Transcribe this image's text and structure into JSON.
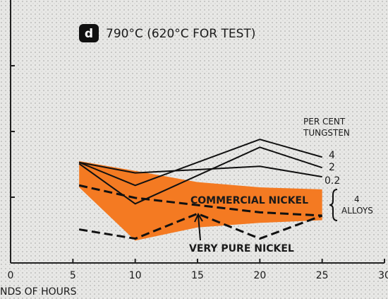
{
  "chart_data": {
    "type": "line",
    "panel_label": "d",
    "title": "790°C (620°C FOR TEST)",
    "xlabel": "NDS OF HOURS",
    "x": [
      5.5,
      10,
      15,
      20,
      25
    ],
    "xlim": [
      0,
      30
    ],
    "xticks": [
      0,
      5,
      10,
      15,
      20,
      25,
      30
    ],
    "ylim": [
      0,
      4
    ],
    "yticks": [
      1,
      2,
      3
    ],
    "series": [
      {
        "kind": "band",
        "color": "#f47a22",
        "values": [
          1.55,
          1.4,
          1.23,
          1.15,
          1.12
        ],
        "lower": [
          1.15,
          0.34,
          0.54,
          0.61,
          0.65
        ]
      },
      {
        "name": "4",
        "color": "#111111",
        "values": [
          1.53,
          1.18,
          1.53,
          1.88,
          1.61
        ]
      },
      {
        "name": "2",
        "color": "#111111",
        "values": [
          1.51,
          0.9,
          1.33,
          1.76,
          1.45
        ]
      },
      {
        "name": "0.2",
        "color": "#111111",
        "values": [
          1.53,
          1.37,
          1.42,
          1.47,
          1.31
        ]
      },
      {
        "name": "COMMERCIAL NICKEL",
        "color": "#111111",
        "dashed": true,
        "values": [
          1.18,
          0.99,
          0.88,
          0.77,
          0.72
        ]
      },
      {
        "name": "VERY PURE NICKEL",
        "color": "#111111",
        "dashed": true,
        "values": [
          0.51,
          0.37,
          0.75,
          0.37,
          0.72
        ]
      }
    ],
    "annotations": [
      {
        "lines": [
          "PER CENT",
          "TUNGSTEN"
        ]
      },
      {
        "lines": [
          "4",
          "ALLOYS"
        ]
      }
    ]
  }
}
